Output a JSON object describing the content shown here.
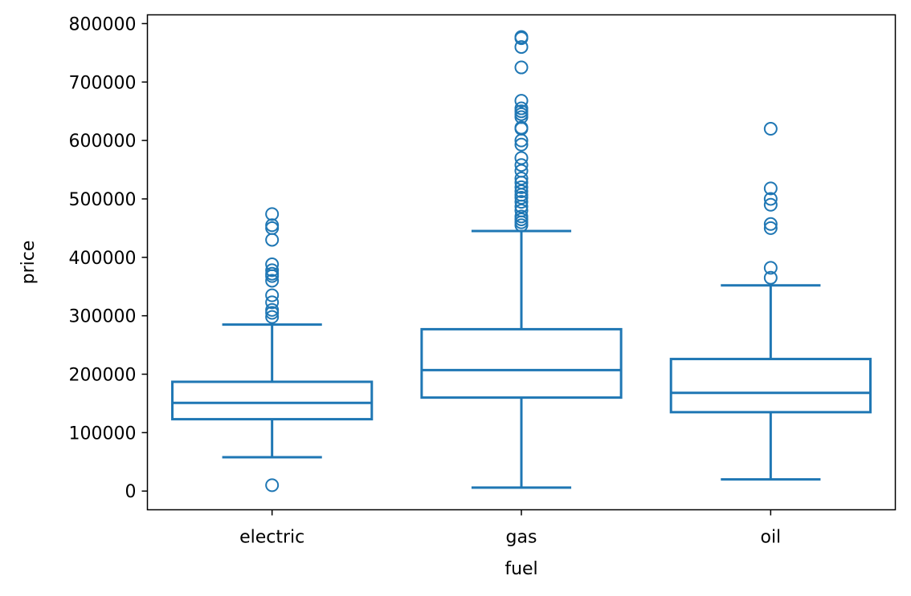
{
  "chart_data": {
    "type": "box",
    "xlabel": "fuel",
    "ylabel": "price",
    "categories": [
      "electric",
      "gas",
      "oil"
    ],
    "ylim": [
      -32000,
      815000
    ],
    "yticks": [
      0,
      100000,
      200000,
      300000,
      400000,
      500000,
      600000,
      700000,
      800000
    ],
    "ytick_labels": [
      "0",
      "100000",
      "200000",
      "300000",
      "400000",
      "500000",
      "600000",
      "700000",
      "800000"
    ],
    "color": "#1f77b4",
    "grid": false,
    "legend": "none",
    "boxes": [
      {
        "category": "electric",
        "whisker_low": 58000,
        "q1": 123000,
        "median": 151000,
        "q3": 187000,
        "whisker_high": 285000,
        "outliers": [
          10000,
          298000,
          305000,
          310000,
          323000,
          335000,
          360000,
          368000,
          372000,
          378000,
          388000,
          430000,
          450000,
          455000,
          474000
        ]
      },
      {
        "category": "gas",
        "whisker_low": 6000,
        "q1": 160000,
        "median": 207000,
        "q3": 277000,
        "whisker_high": 445000,
        "outliers": [
          455000,
          460000,
          465000,
          470000,
          480000,
          487000,
          495000,
          502000,
          507000,
          513000,
          520000,
          528000,
          535000,
          548000,
          558000,
          570000,
          593000,
          600000,
          620000,
          622000,
          640000,
          645000,
          650000,
          655000,
          668000,
          725000,
          760000,
          775000,
          777000
        ]
      },
      {
        "category": "oil",
        "whisker_low": 20000,
        "q1": 135000,
        "median": 168000,
        "q3": 226000,
        "whisker_high": 352000,
        "outliers": [
          365000,
          382000,
          450000,
          457000,
          490000,
          500000,
          518000,
          620000
        ]
      }
    ]
  }
}
